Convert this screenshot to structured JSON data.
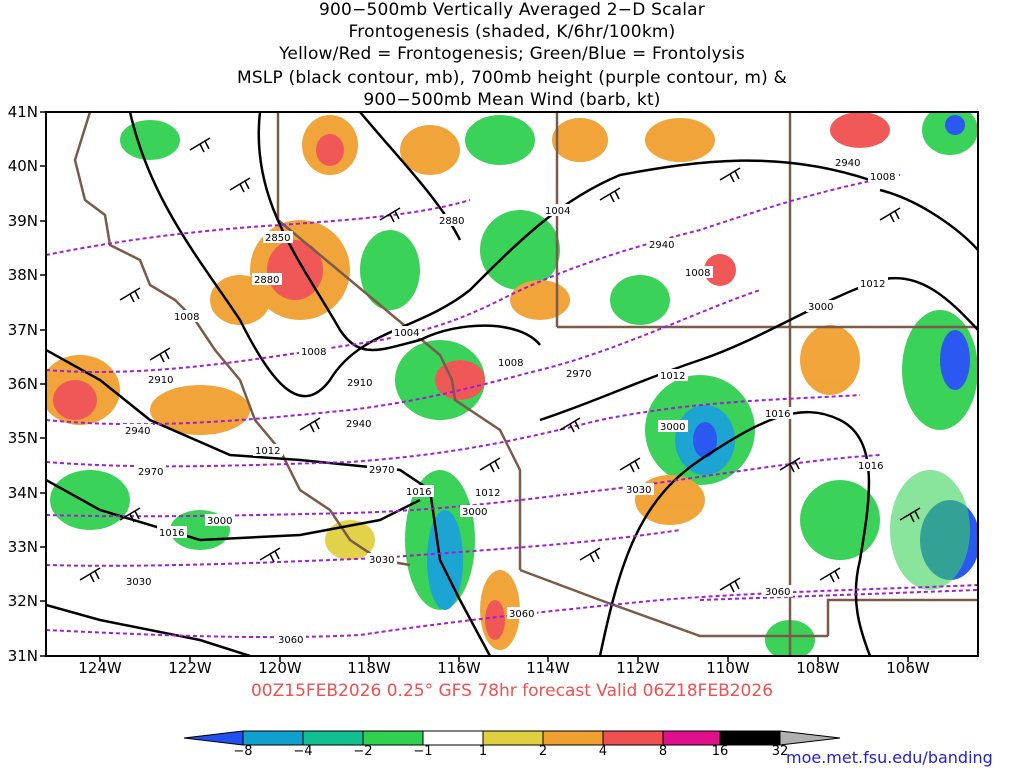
{
  "title": {
    "line1": "900−500mb Vertically Averaged 2−D Scalar",
    "line2": "Frontogenesis (shaded, K/6hr/100km)",
    "line3": "Yellow/Red = Frontogenesis;  Green/Blue = Frontolysis",
    "line4": "MSLP (black contour, mb), 700mb height (purple contour, m) &",
    "line5": "900−500mb Mean Wind (barb, kt)"
  },
  "axes": {
    "lat_labels": [
      "41N",
      "40N",
      "39N",
      "38N",
      "37N",
      "36N",
      "35N",
      "34N",
      "33N",
      "32N",
      "31N"
    ],
    "lon_labels": [
      "124W",
      "122W",
      "120W",
      "118W",
      "116W",
      "114W",
      "112W",
      "110W",
      "108W",
      "106W"
    ]
  },
  "valid_text": "00Z15FEB2026 0.25° GFS 78hr forecast Valid 06Z18FEB2026",
  "credit": "moe.met.fsu.edu/banding",
  "colorbar": {
    "labels": [
      "−8",
      "−4",
      "−2",
      "−1",
      "1",
      "2",
      "4",
      "8",
      "16",
      "32"
    ],
    "colors": [
      "#2050f0",
      "#10a0d0",
      "#10c090",
      "#30d050",
      "#ffffff",
      "#e0d040",
      "#f0a030",
      "#f05050",
      "#e0108a",
      "#000000",
      "#b0b0b0"
    ]
  },
  "mslp_labels": [
    "1004",
    "1008",
    "1008",
    "1004",
    "1008",
    "1008",
    "1012",
    "1016",
    "1012",
    "1012",
    "1016",
    "1016",
    "1004",
    "1008",
    "1012",
    "1016"
  ],
  "height_labels": [
    "2850",
    "2880",
    "2880",
    "2910",
    "2910",
    "2940",
    "2940",
    "2970",
    "2970",
    "3000",
    "3000",
    "3030",
    "3030",
    "3060",
    "3060",
    "2940",
    "2970",
    "3000",
    "3060",
    "2940",
    "3000",
    "3030"
  ]
}
